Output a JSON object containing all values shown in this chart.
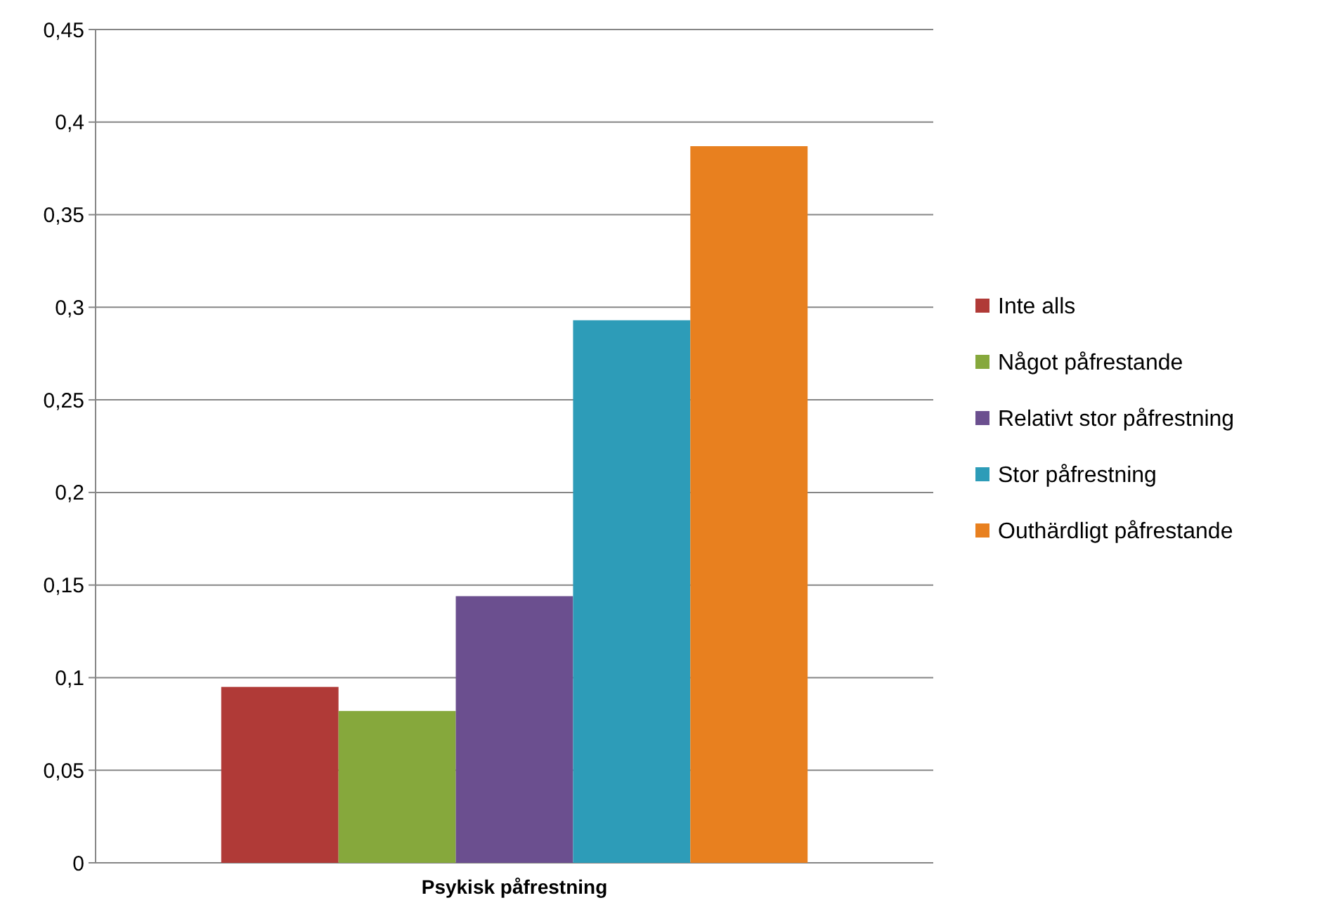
{
  "chart_data": {
    "type": "bar",
    "xlabel": "Psykisk påfrestning",
    "categories": [
      null
    ],
    "series": [
      {
        "name": "Inte alls",
        "color": "#b03a37",
        "values": [
          0.095
        ]
      },
      {
        "name": "Något påfrestande",
        "color": "#86a83c",
        "values": [
          0.082
        ]
      },
      {
        "name": "Relativt stor påfrestning",
        "color": "#6b4f8f",
        "values": [
          0.144
        ]
      },
      {
        "name": "Stor påfrestning",
        "color": "#2d9cb8",
        "values": [
          0.293
        ]
      },
      {
        "name": "Outhärdligt påfrestande",
        "color": "#e8801f",
        "values": [
          0.387
        ]
      }
    ],
    "ylim": [
      0,
      0.45
    ],
    "yticks": [
      0,
      {
        "value": 0.05,
        "label": "0,05"
      },
      {
        "value": 0.1,
        "label": "0,1"
      },
      {
        "value": 0.15,
        "label": "0,15"
      },
      {
        "value": 0.2,
        "label": "0,2"
      },
      {
        "value": 0.25,
        "label": "0,25"
      },
      {
        "value": 0.3,
        "label": "0,3"
      },
      {
        "value": 0.35,
        "label": "0,35"
      },
      {
        "value": 0.4,
        "label": "0,4"
      },
      {
        "value": 0.45,
        "label": "0,45"
      }
    ],
    "grid": "y",
    "legend": "right"
  }
}
